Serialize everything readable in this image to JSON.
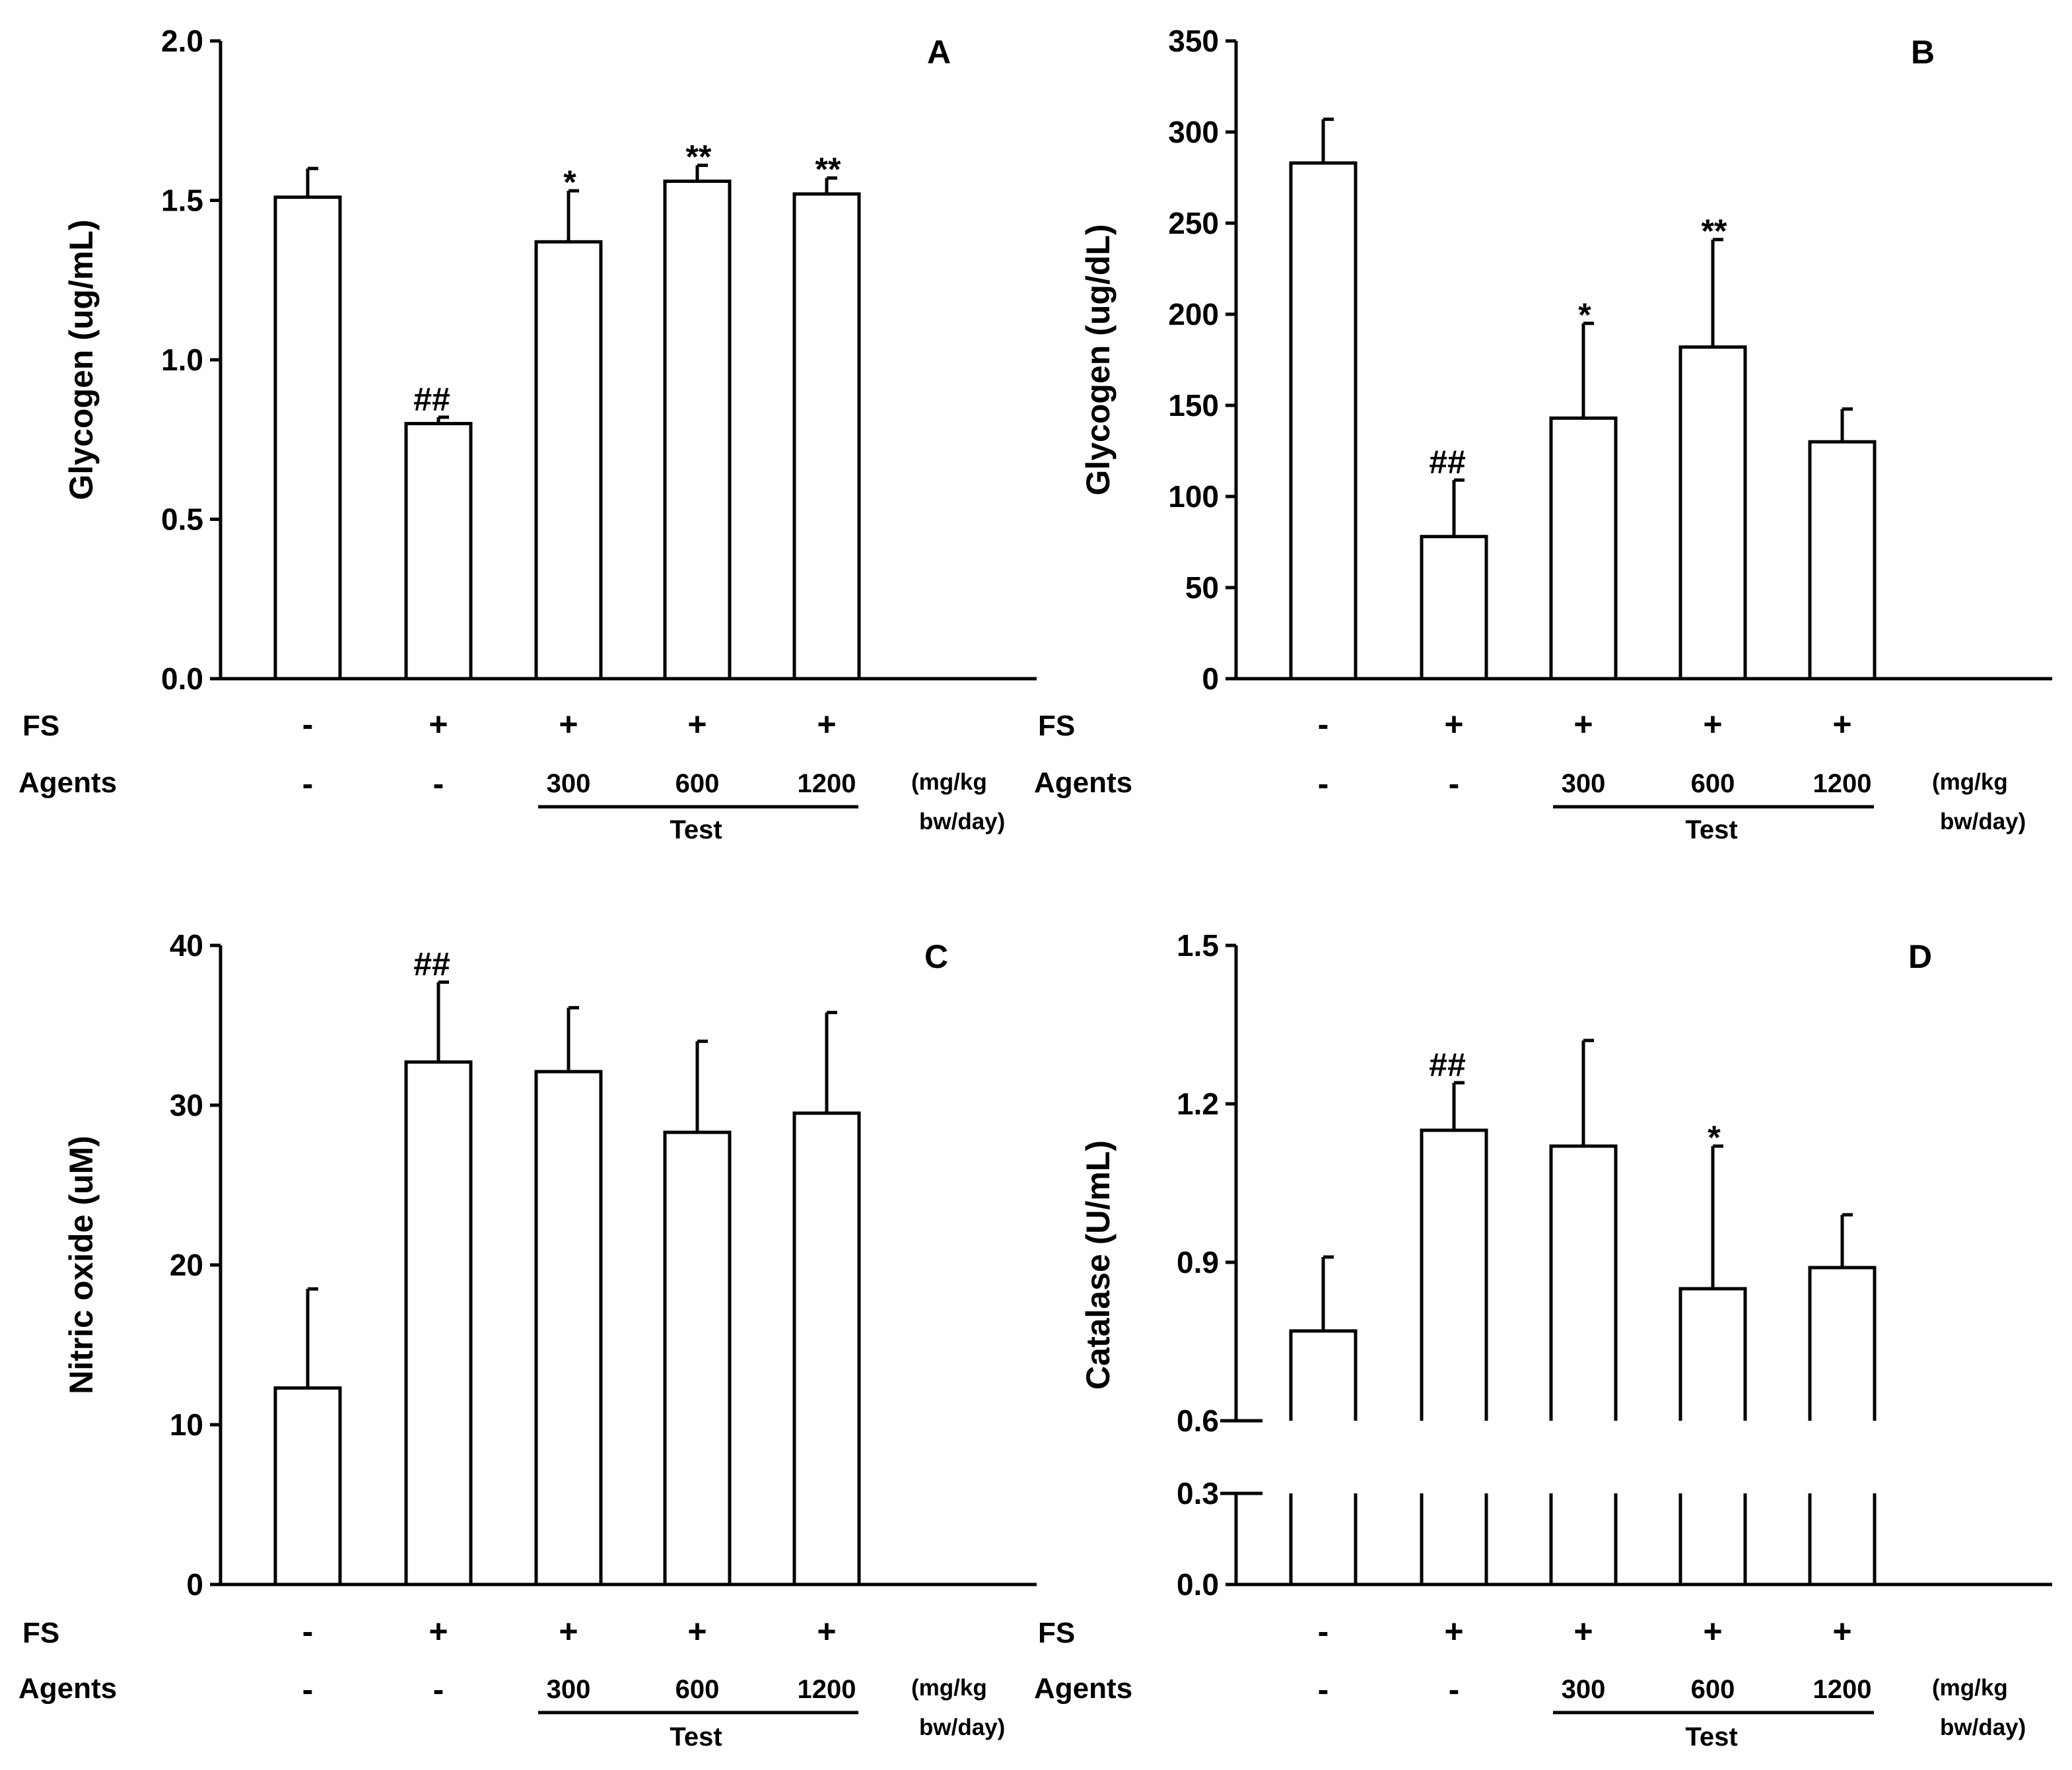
{
  "figure": {
    "row_labels": {
      "fs": "FS",
      "agents": "Agents"
    },
    "fs_signs": [
      "-",
      "+",
      "+",
      "+",
      "+"
    ],
    "agent_labels": [
      "-",
      "-",
      "300",
      "600",
      "1200"
    ],
    "group_label": "Test",
    "unit_line1": "(mg/kg",
    "unit_line2": "bw/day)"
  },
  "chart_data": [
    {
      "type": "bar",
      "panel": "A",
      "ylabel": "Glycogen (ug/mL)",
      "ylim": [
        0,
        2.0
      ],
      "yticks": [
        "0.0",
        "0.5",
        "1.0",
        "1.5",
        "2.0"
      ],
      "ytick_values": [
        0,
        0.5,
        1.0,
        1.5,
        2.0
      ],
      "categories": [
        "- / -",
        "+ / -",
        "+ / 300",
        "+ / 600",
        "+ / 1200"
      ],
      "values": [
        1.51,
        0.8,
        1.37,
        1.56,
        1.52
      ],
      "errors": [
        0.09,
        0.02,
        0.16,
        0.05,
        0.05
      ],
      "annotations": [
        "",
        "##",
        "*",
        "**",
        "**"
      ]
    },
    {
      "type": "bar",
      "panel": "B",
      "ylabel": "Glycogen (ug/dL)",
      "ylim": [
        0,
        350
      ],
      "yticks": [
        "0",
        "50",
        "100",
        "150",
        "200",
        "250",
        "300",
        "350"
      ],
      "ytick_values": [
        0,
        50,
        100,
        150,
        200,
        250,
        300,
        350
      ],
      "categories": [
        "- / -",
        "+ / -",
        "+ / 300",
        "+ / 600",
        "+ / 1200"
      ],
      "values": [
        283,
        78,
        143,
        182,
        130
      ],
      "errors": [
        24,
        31,
        52,
        59,
        18
      ],
      "annotations": [
        "",
        "##",
        "*",
        "**",
        ""
      ]
    },
    {
      "type": "bar",
      "panel": "C",
      "ylabel": "Nitric oxide (uM)",
      "ylim": [
        0,
        40
      ],
      "yticks": [
        "0",
        "10",
        "20",
        "30",
        "40"
      ],
      "ytick_values": [
        0,
        10,
        20,
        30,
        40
      ],
      "categories": [
        "- / -",
        "+ / -",
        "+ / 300",
        "+ / 600",
        "+ / 1200"
      ],
      "values": [
        12.3,
        32.7,
        32.1,
        28.3,
        29.5
      ],
      "errors": [
        6.2,
        5.0,
        4.0,
        5.7,
        6.3
      ],
      "annotations": [
        "",
        "##",
        "",
        "",
        ""
      ]
    },
    {
      "type": "bar",
      "panel": "D",
      "ylabel": "Catalase (U/mL)",
      "ylim": [
        0,
        1.5
      ],
      "axis_break": [
        0.3,
        0.6
      ],
      "yticks": [
        "0.0",
        "0.3",
        "0.6",
        "0.9",
        "1.2",
        "1.5"
      ],
      "ytick_values": [
        0,
        0.3,
        0.6,
        0.9,
        1.2,
        1.5
      ],
      "categories": [
        "- / -",
        "+ / -",
        "+ / 300",
        "+ / 600",
        "+ / 1200"
      ],
      "values": [
        0.77,
        1.15,
        1.12,
        0.85,
        0.89
      ],
      "errors": [
        0.14,
        0.09,
        0.2,
        0.27,
        0.1
      ],
      "annotations": [
        "",
        "##",
        "",
        "*",
        ""
      ]
    }
  ]
}
